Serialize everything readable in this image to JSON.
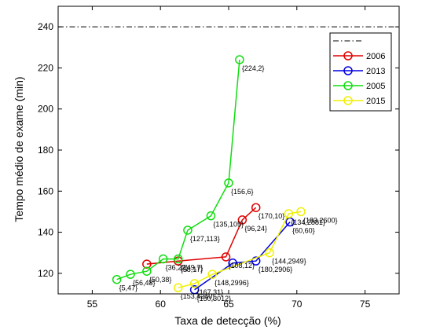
{
  "chart_data": {
    "type": "line",
    "xlabel": "Taxa de detecção (%)",
    "ylabel": "Tempo médio de exame (min)",
    "xlim": [
      52.5,
      77.5
    ],
    "ylim": [
      110,
      250
    ],
    "xticks": [
      55,
      60,
      65,
      70,
      75
    ],
    "yticks": [
      120,
      140,
      160,
      180,
      200,
      220,
      240
    ],
    "grid": false,
    "legend_position": "top-right",
    "reference_line": {
      "y": 240,
      "style": "dash-dot",
      "color": "#000000",
      "label": ""
    },
    "series": [
      {
        "name": "2006",
        "color": "#e00000",
        "points": [
          {
            "x": 59.0,
            "y": 124.5,
            "label": ""
          },
          {
            "x": 61.3,
            "y": 126.0,
            "label": "{58,17}"
          },
          {
            "x": 64.8,
            "y": 128.0,
            "label": "{108,12}"
          },
          {
            "x": 66.0,
            "y": 146.0,
            "label": "{96,24}"
          },
          {
            "x": 67.0,
            "y": 152.0,
            "label": "{170,10}"
          }
        ]
      },
      {
        "name": "2013",
        "color": "#0000e0",
        "points": [
          {
            "x": 62.5,
            "y": 112.0,
            "label": "{150,3012}"
          },
          {
            "x": 65.3,
            "y": 125.0,
            "label": ""
          },
          {
            "x": 67.0,
            "y": 126.0,
            "label": "{180,2906}"
          },
          {
            "x": 69.5,
            "y": 145.0,
            "label": "{60,60}"
          }
        ]
      },
      {
        "name": "2005",
        "color": "#10dd10",
        "points": [
          {
            "x": 56.8,
            "y": 117.0,
            "label": "{5,47}"
          },
          {
            "x": 57.8,
            "y": 119.5,
            "label": "{56,48}"
          },
          {
            "x": 59.0,
            "y": 121.0,
            "label": "{50,38}"
          },
          {
            "x": 60.2,
            "y": 127.0,
            "label": "{36,22}"
          },
          {
            "x": 61.3,
            "y": 127.0,
            "label": "{149,7}"
          },
          {
            "x": 62.0,
            "y": 141.0,
            "label": "{127,113}"
          },
          {
            "x": 63.7,
            "y": 148.0,
            "label": "{135,105}"
          },
          {
            "x": 65.0,
            "y": 164.0,
            "label": "{156,6}"
          },
          {
            "x": 65.8,
            "y": 224.0,
            "label": "{224,2}"
          }
        ]
      },
      {
        "name": "2015",
        "color": "#f0f000",
        "points": [
          {
            "x": 61.3,
            "y": 113.0,
            "label": "{153,4240}"
          },
          {
            "x": 62.5,
            "y": 115.0,
            "label": "{167,31}"
          },
          {
            "x": 63.8,
            "y": 119.5,
            "label": "{148,2996}"
          },
          {
            "x": 68.0,
            "y": 130.0,
            "label": "{144,2949}"
          },
          {
            "x": 69.4,
            "y": 149.0,
            "label": "{134,2881}"
          },
          {
            "x": 70.3,
            "y": 150.0,
            "label": "{183,2600}"
          }
        ]
      }
    ]
  }
}
